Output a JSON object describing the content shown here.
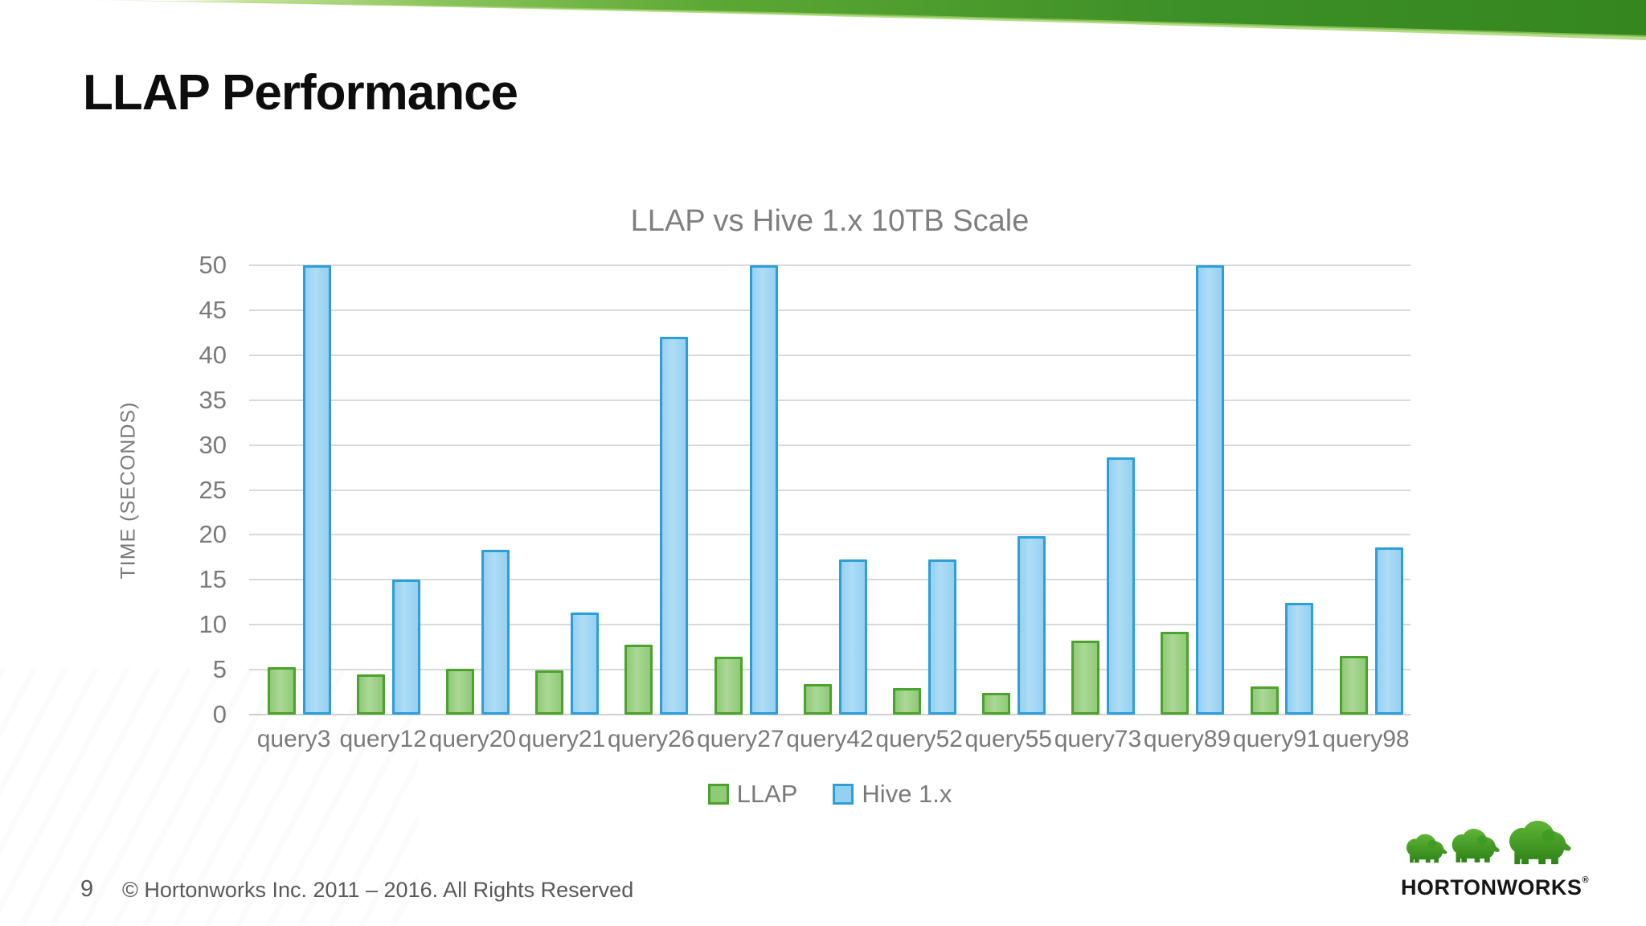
{
  "slide": {
    "title": "LLAP Performance",
    "page_number": "9",
    "copyright": "© Hortonworks Inc. 2011 – 2016. All Rights Reserved"
  },
  "logo": {
    "brand": "HORTONWORKS",
    "registered_mark": "®",
    "icon": "three-green-elephants-icon"
  },
  "colors": {
    "banner_green_light": "#c9e49c",
    "banner_green_mid": "#6cb33f",
    "banner_green_dark": "#35861f",
    "grid": "#d9d9d9",
    "chart_text": "#7a7a7a",
    "title_text": "#0d0d0d",
    "footer_text": "#595959"
  },
  "chart_data": {
    "type": "bar",
    "title": "LLAP vs Hive 1.x 10TB Scale",
    "xlabel": "",
    "ylabel": "TIME (SECONDS)",
    "ylim": [
      0,
      50
    ],
    "yticks": [
      0,
      5,
      10,
      15,
      20,
      25,
      30,
      35,
      40,
      45,
      50
    ],
    "grid": true,
    "legend_position": "bottom",
    "categories": [
      "query3",
      "query12",
      "query20",
      "query21",
      "query26",
      "query27",
      "query42",
      "query52",
      "query55",
      "query73",
      "query89",
      "query91",
      "query98"
    ],
    "series": [
      {
        "name": "LLAP",
        "fill": "#8fca77",
        "fill_light": "#abd896",
        "border": "#4ba22c",
        "values": [
          5.3,
          4.5,
          5.1,
          4.9,
          7.8,
          6.4,
          3.4,
          3.0,
          2.4,
          8.2,
          9.2,
          3.1,
          6.5
        ]
      },
      {
        "name": "Hive 1.x",
        "fill": "#96d0f1",
        "fill_light": "#aeddf6",
        "border": "#2d9fd8",
        "values": [
          50,
          15,
          18.3,
          11.4,
          42,
          50,
          17.3,
          17.3,
          19.9,
          28.6,
          50,
          12.4,
          18.6
        ]
      }
    ],
    "bars_clipped_at_ymax": [
      "query3",
      "query27",
      "query89"
    ]
  }
}
